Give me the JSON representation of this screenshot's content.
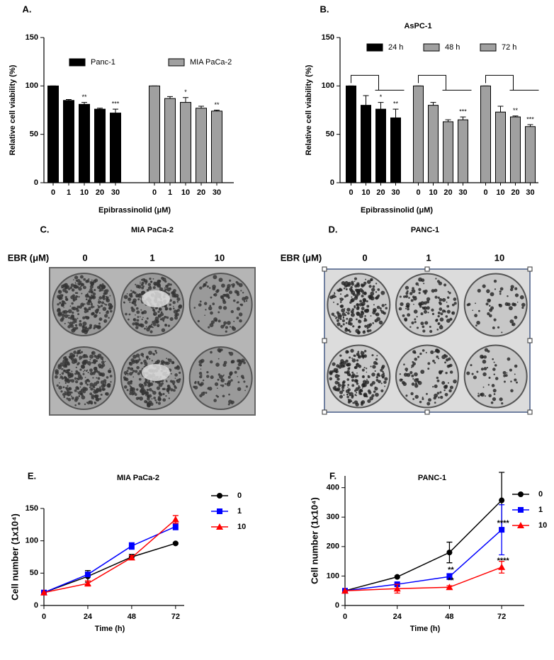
{
  "chart_data": [
    {
      "type": "bar",
      "panel_label": "A.",
      "ylabel": "Relative cell viability (%)",
      "xlabel": "Epibrassinolid (μM)",
      "categories": [
        "0",
        "1",
        "10",
        "20",
        "30",
        "0",
        "1",
        "10",
        "20",
        "30"
      ],
      "series": [
        {
          "name": "Panc-1",
          "color": "#000000",
          "values": [
            100,
            85,
            81,
            76,
            72,
            null,
            null,
            null,
            null,
            null
          ],
          "errors": [
            0,
            1,
            2,
            1,
            4,
            null,
            null,
            null,
            null,
            null
          ],
          "significance": [
            null,
            null,
            "**",
            null,
            "***",
            null,
            null,
            null,
            null,
            null
          ]
        },
        {
          "name": "MIA PaCa-2",
          "color": "#a0a0a0",
          "values": [
            null,
            null,
            null,
            null,
            null,
            100,
            87,
            83,
            77,
            74
          ],
          "errors": [
            null,
            null,
            null,
            null,
            null,
            0,
            2,
            5,
            2,
            1
          ],
          "significance": [
            null,
            null,
            null,
            null,
            null,
            null,
            null,
            "*",
            null,
            "**"
          ]
        }
      ],
      "ylim": [
        0,
        150
      ],
      "yticks": [
        0,
        50,
        100,
        150
      ]
    },
    {
      "type": "bar",
      "panel_label": "B.",
      "title": "AsPC-1",
      "ylabel": "Relative cell viability (%)",
      "xlabel": "Epibrassinolid (μM)",
      "categories": [
        "0",
        "10",
        "20",
        "30",
        "0",
        "10",
        "20",
        "30",
        "0",
        "10",
        "20",
        "30"
      ],
      "series": [
        {
          "name": "24 h",
          "color": "#000000",
          "values": [
            100,
            80,
            76,
            67,
            null,
            null,
            null,
            null,
            null,
            null,
            null,
            null
          ],
          "errors": [
            0,
            10,
            7,
            9,
            null,
            null,
            null,
            null,
            null,
            null,
            null,
            null
          ],
          "significance": [
            null,
            null,
            "*",
            "**",
            null,
            null,
            null,
            null,
            null,
            null,
            null,
            null
          ]
        },
        {
          "name": "48 h",
          "color": "#a0a0a0",
          "values": [
            null,
            null,
            null,
            null,
            100,
            80,
            63,
            65,
            null,
            null,
            null,
            null
          ],
          "errors": [
            null,
            null,
            null,
            null,
            0,
            3,
            2,
            3,
            null,
            null,
            null,
            null
          ],
          "significance": [
            null,
            null,
            null,
            null,
            null,
            null,
            null,
            "***",
            null,
            null,
            null,
            null
          ]
        },
        {
          "name": "72 h",
          "color": "#a0a0a0",
          "values": [
            null,
            null,
            null,
            null,
            null,
            null,
            null,
            null,
            100,
            73,
            68,
            58
          ],
          "errors": [
            null,
            null,
            null,
            null,
            null,
            null,
            null,
            null,
            0,
            6,
            1,
            2
          ],
          "significance": [
            null,
            null,
            null,
            null,
            null,
            null,
            null,
            null,
            null,
            null,
            "**",
            "***"
          ]
        }
      ],
      "ylim": [
        0,
        150
      ],
      "yticks": [
        0,
        50,
        100,
        150
      ]
    },
    {
      "type": "line",
      "panel_label": "E.",
      "title": "MIA PaCa-2",
      "ylabel": "Cell number (1x10⁴)",
      "xlabel": "Time (h)",
      "x": [
        0,
        24,
        48,
        72
      ],
      "series": [
        {
          "name": "0",
          "color": "#000000",
          "marker": "circle",
          "values": [
            20,
            45,
            75,
            96
          ],
          "errors": [
            0,
            9,
            4,
            1
          ],
          "significance": [
            null,
            null,
            null,
            null
          ]
        },
        {
          "name": "1",
          "color": "#0000ff",
          "marker": "square",
          "values": [
            20,
            48,
            92,
            122
          ],
          "errors": [
            0,
            3,
            5,
            5
          ],
          "significance": [
            null,
            null,
            null,
            null
          ]
        },
        {
          "name": "10",
          "color": "#ff0000",
          "marker": "triangle",
          "values": [
            20,
            34,
            74,
            133
          ],
          "errors": [
            0,
            4,
            3,
            6
          ],
          "significance": [
            null,
            null,
            null,
            null
          ]
        }
      ],
      "xlim": [
        0,
        74
      ],
      "xticks": [
        0,
        24,
        48,
        72
      ],
      "ylim": [
        0,
        150
      ],
      "yticks": [
        0,
        50,
        100,
        150
      ]
    },
    {
      "type": "line",
      "panel_label": "F.",
      "title": "PANC-1",
      "ylabel": "Cell number (1x10⁴)",
      "xlabel": "Time (h)",
      "x": [
        0,
        24,
        48,
        72
      ],
      "series": [
        {
          "name": "0",
          "color": "#000000",
          "marker": "circle",
          "values": [
            50,
            97,
            180,
            357
          ],
          "errors": [
            0,
            3,
            35,
            95
          ],
          "significance": [
            null,
            null,
            null,
            null
          ]
        },
        {
          "name": "1",
          "color": "#0000ff",
          "marker": "square",
          "values": [
            50,
            72,
            98,
            257
          ],
          "errors": [
            0,
            5,
            10,
            85
          ],
          "significance": [
            null,
            null,
            "**",
            "****"
          ]
        },
        {
          "name": "10",
          "color": "#ff0000",
          "marker": "triangle",
          "values": [
            50,
            57,
            62,
            130
          ],
          "errors": [
            0,
            15,
            5,
            20
          ],
          "significance": [
            null,
            null,
            "**",
            "****"
          ]
        }
      ],
      "xlim": [
        0,
        84
      ],
      "xticks": [
        0,
        24,
        48,
        72
      ],
      "ylim": [
        0,
        440
      ],
      "yticks": [
        0,
        100,
        200,
        300,
        400
      ]
    }
  ],
  "images": [
    {
      "panel_label": "C.",
      "title": "MIA PaCa-2",
      "row_label": "EBR (μM)",
      "columns": [
        "0",
        "1",
        "10"
      ]
    },
    {
      "panel_label": "D.",
      "title": "PANC-1",
      "row_label": "EBR (μM)",
      "columns": [
        "0",
        "1",
        "10"
      ]
    }
  ]
}
